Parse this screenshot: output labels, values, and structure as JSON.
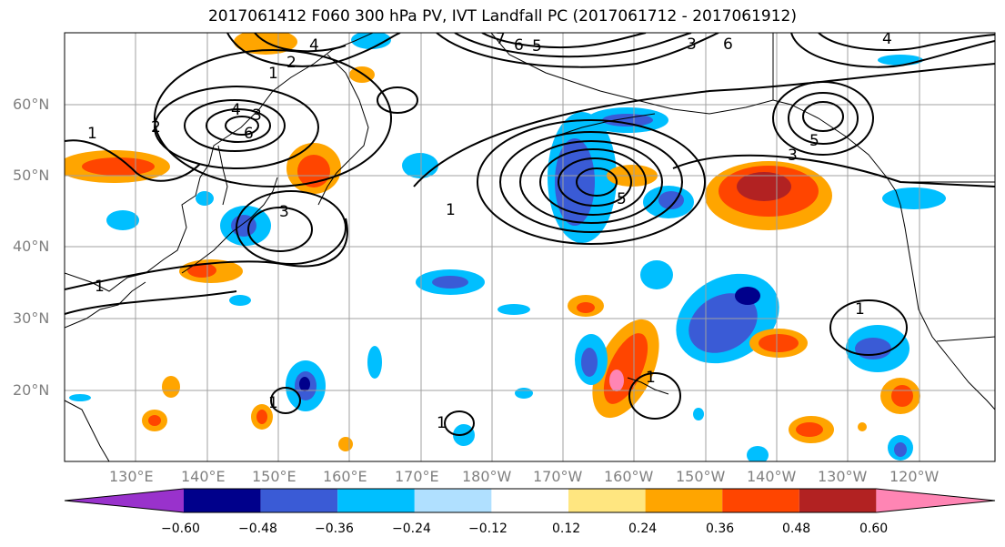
{
  "title": "2017061412 F060 300 hPa PV, IVT Landfall PC (2017061712 - 2017061912)",
  "lat_labels": [
    "60°N",
    "50°N",
    "40°N",
    "30°N",
    "20°N"
  ],
  "lon_labels": [
    "130°E",
    "140°E",
    "150°E",
    "160°E",
    "170°E",
    "180°W",
    "170°W",
    "160°W",
    "150°W",
    "140°W",
    "130°W",
    "120°W"
  ],
  "colorbar": {
    "tick_labels": [
      "−0.60",
      "−0.48",
      "−0.36",
      "−0.24",
      "−0.12",
      "0.12",
      "0.24",
      "0.36",
      "0.48",
      "0.60"
    ],
    "colors": [
      "#9932cc",
      "#00008b",
      "#3a5bd6",
      "#00bfff",
      "#b0e0ff",
      "#ffffff",
      "#ffe680",
      "#ffa500",
      "#ff4500",
      "#b22222",
      "#ff85b4"
    ]
  },
  "contour_labels": {
    "c1": "1",
    "c2": "2",
    "c3": "3",
    "c4": "4",
    "c5": "5",
    "c6": "6",
    "c7": "7"
  },
  "grid": "on"
}
